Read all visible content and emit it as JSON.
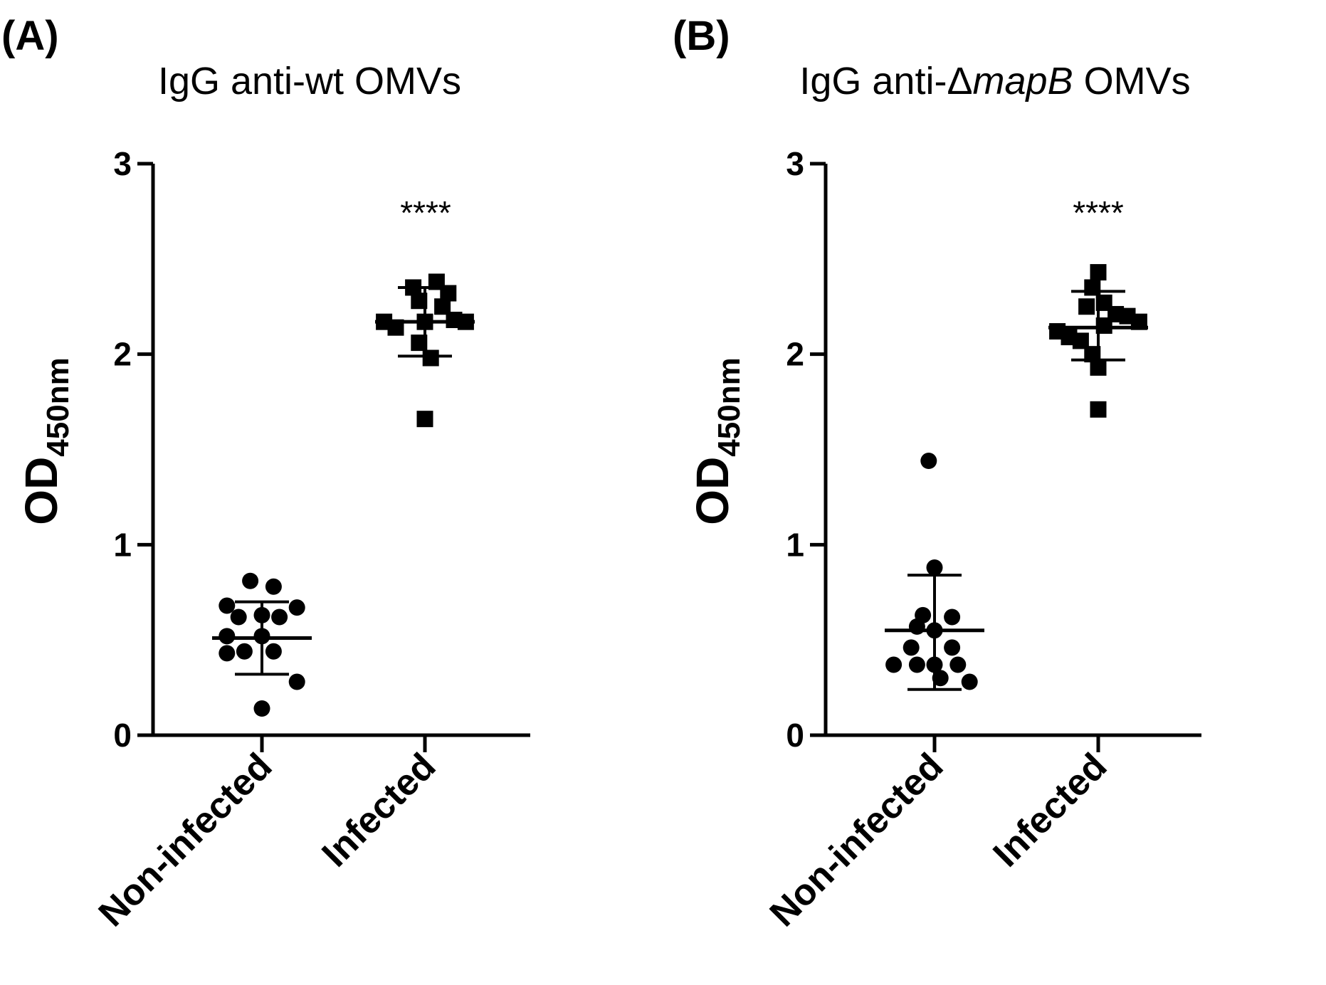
{
  "chart_data": [
    {
      "type": "scatter",
      "panel_label": "(A)",
      "title_parts": [
        "IgG anti-wt OMVs"
      ],
      "ylabel": "OD",
      "ylabel_sub": "450nm",
      "ylim": [
        0,
        3
      ],
      "yticks": [
        "0",
        "1",
        "2",
        "3"
      ],
      "categories": [
        "Non-infected",
        "Infected"
      ],
      "significance": "****",
      "series": [
        {
          "name": "Non-infected",
          "marker": "circle",
          "points": [
            [
              -0.24,
              0.68
            ],
            [
              -0.08,
              0.81
            ],
            [
              0.08,
              0.78
            ],
            [
              0.24,
              0.67
            ],
            [
              -0.16,
              0.62
            ],
            [
              0.0,
              0.63
            ],
            [
              0.12,
              0.62
            ],
            [
              -0.24,
              0.52
            ],
            [
              0.0,
              0.52
            ],
            [
              -0.24,
              0.43
            ],
            [
              -0.12,
              0.44
            ],
            [
              0.08,
              0.44
            ],
            [
              0.24,
              0.28
            ],
            [
              0.0,
              0.14
            ]
          ],
          "mean": 0.51,
          "sd": [
            0.32,
            0.7
          ]
        },
        {
          "name": "Infected",
          "marker": "square",
          "points": [
            [
              -0.08,
              2.35
            ],
            [
              0.08,
              2.38
            ],
            [
              0.16,
              2.32
            ],
            [
              -0.04,
              2.28
            ],
            [
              0.12,
              2.25
            ],
            [
              -0.28,
              2.17
            ],
            [
              -0.2,
              2.14
            ],
            [
              0.2,
              2.18
            ],
            [
              0.28,
              2.17
            ],
            [
              0.0,
              2.17
            ],
            [
              -0.04,
              2.06
            ],
            [
              0.04,
              1.98
            ],
            [
              0.0,
              1.66
            ]
          ],
          "mean": 2.17,
          "sd": [
            1.99,
            2.35
          ]
        }
      ]
    },
    {
      "type": "scatter",
      "panel_label": "(B)",
      "title_parts": [
        "IgG anti-",
        "Δ",
        "mapB",
        " OMVs"
      ],
      "ylabel": "OD",
      "ylabel_sub": "450nm",
      "ylim": [
        0,
        3
      ],
      "yticks": [
        "0",
        "1",
        "2",
        "3"
      ],
      "categories": [
        "Non-infected",
        "Infected"
      ],
      "significance": "****",
      "series": [
        {
          "name": "Non-infected",
          "marker": "circle",
          "points": [
            [
              -0.04,
              1.44
            ],
            [
              0.0,
              0.88
            ],
            [
              -0.08,
              0.63
            ],
            [
              0.12,
              0.62
            ],
            [
              -0.12,
              0.57
            ],
            [
              0.0,
              0.55
            ],
            [
              -0.16,
              0.46
            ],
            [
              0.12,
              0.46
            ],
            [
              -0.28,
              0.37
            ],
            [
              -0.12,
              0.37
            ],
            [
              0.0,
              0.37
            ],
            [
              0.16,
              0.37
            ],
            [
              0.04,
              0.3
            ],
            [
              0.24,
              0.28
            ]
          ],
          "mean": 0.55,
          "sd": [
            0.24,
            0.84
          ]
        },
        {
          "name": "Infected",
          "marker": "square",
          "points": [
            [
              0.0,
              2.43
            ],
            [
              -0.04,
              2.35
            ],
            [
              -0.08,
              2.25
            ],
            [
              0.04,
              2.27
            ],
            [
              0.12,
              2.21
            ],
            [
              0.2,
              2.2
            ],
            [
              0.28,
              2.17
            ],
            [
              -0.28,
              2.12
            ],
            [
              -0.2,
              2.09
            ],
            [
              -0.12,
              2.07
            ],
            [
              0.04,
              2.15
            ],
            [
              -0.04,
              2.0
            ],
            [
              0.0,
              1.93
            ],
            [
              0.0,
              1.71
            ]
          ],
          "mean": 2.14,
          "sd": [
            1.97,
            2.33
          ]
        }
      ]
    }
  ]
}
